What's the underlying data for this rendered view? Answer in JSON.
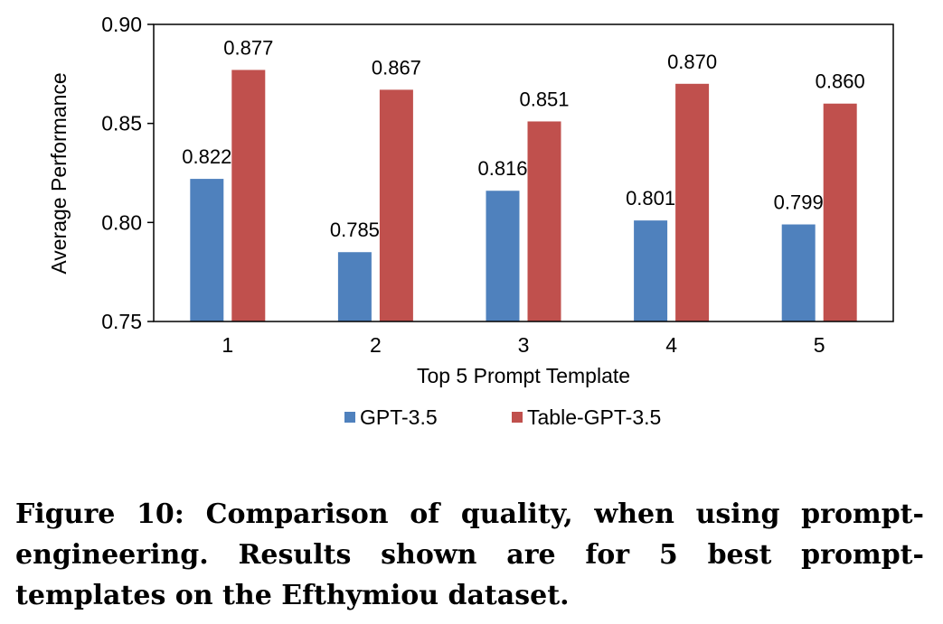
{
  "chart_data": {
    "type": "bar",
    "categories": [
      "1",
      "2",
      "3",
      "4",
      "5"
    ],
    "series": [
      {
        "name": "GPT-3.5",
        "color": "#4f81bd",
        "values": [
          0.822,
          0.785,
          0.816,
          0.801,
          0.799
        ],
        "labels": [
          "0.822",
          "0.785",
          "0.816",
          "0.801",
          "0.799"
        ]
      },
      {
        "name": "Table-GPT-3.5",
        "color": "#c0504d",
        "values": [
          0.877,
          0.867,
          0.851,
          0.87,
          0.86
        ],
        "labels": [
          "0.877",
          "0.867",
          "0.851",
          "0.870",
          "0.860"
        ]
      }
    ],
    "xlabel": "Top 5 Prompt Template",
    "ylabel": "Average Performance",
    "ylim": [
      0.75,
      0.9
    ],
    "yticks": [
      "0.75",
      "0.80",
      "0.85",
      "0.90"
    ],
    "grid": false,
    "legend": "bottom"
  },
  "caption": "Figure 10: Comparison of quality, when using prompt-engineering. Results shown are for 5 best prompt-templates on the Efthymiou dataset."
}
